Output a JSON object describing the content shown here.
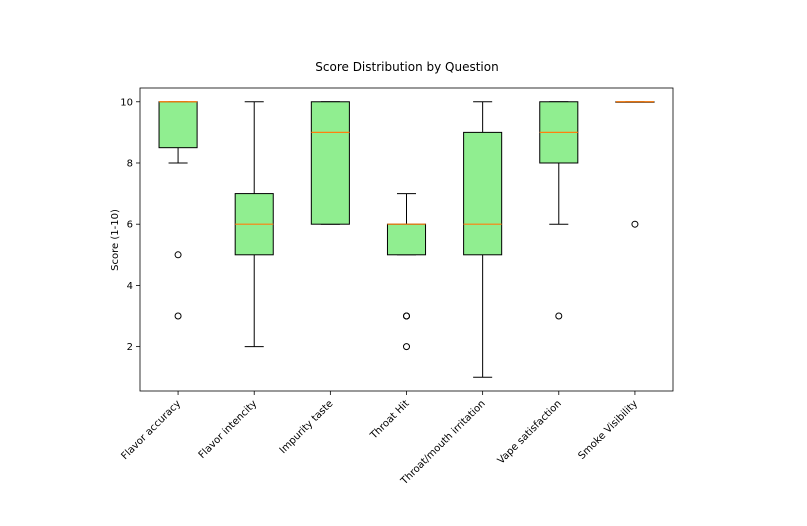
{
  "chart_data": {
    "type": "box",
    "title": "Score Distribution by Question",
    "xlabel": "",
    "ylabel": "Score (1-10)",
    "ylim": [
      0.55,
      10.45
    ],
    "yticks": [
      2,
      4,
      6,
      8,
      10
    ],
    "grid": false,
    "colors": {
      "box_fill": "#90ee90",
      "box_edge": "#000000",
      "median": "#ff7f0e",
      "whisker": "#000000",
      "flier": "#000000"
    },
    "categories": [
      "Flavor accuracy",
      "Flavor intencity",
      "Impurity taste",
      "Throat Hit",
      "Throat/mouth irritation",
      "Vape satisfaction",
      "Smoke Visibility"
    ],
    "boxes": [
      {
        "whisker_low": 8,
        "q1": 8.5,
        "median": 10,
        "q3": 10,
        "whisker_high": 10,
        "fliers": [
          5,
          3
        ]
      },
      {
        "whisker_low": 2,
        "q1": 5,
        "median": 6,
        "q3": 7,
        "whisker_high": 10,
        "fliers": []
      },
      {
        "whisker_low": 6,
        "q1": 6,
        "median": 9,
        "q3": 10,
        "whisker_high": 10,
        "fliers": []
      },
      {
        "whisker_low": 5,
        "q1": 5,
        "median": 6,
        "q3": 6,
        "whisker_high": 7,
        "fliers": [
          3,
          3,
          2
        ]
      },
      {
        "whisker_low": 1,
        "q1": 5,
        "median": 6,
        "q3": 9,
        "whisker_high": 10,
        "fliers": []
      },
      {
        "whisker_low": 6,
        "q1": 8,
        "median": 9,
        "q3": 10,
        "whisker_high": 10,
        "fliers": [
          3
        ]
      },
      {
        "whisker_low": 10,
        "q1": 10,
        "median": 10,
        "q3": 10,
        "whisker_high": 10,
        "fliers": [
          6
        ]
      }
    ]
  }
}
